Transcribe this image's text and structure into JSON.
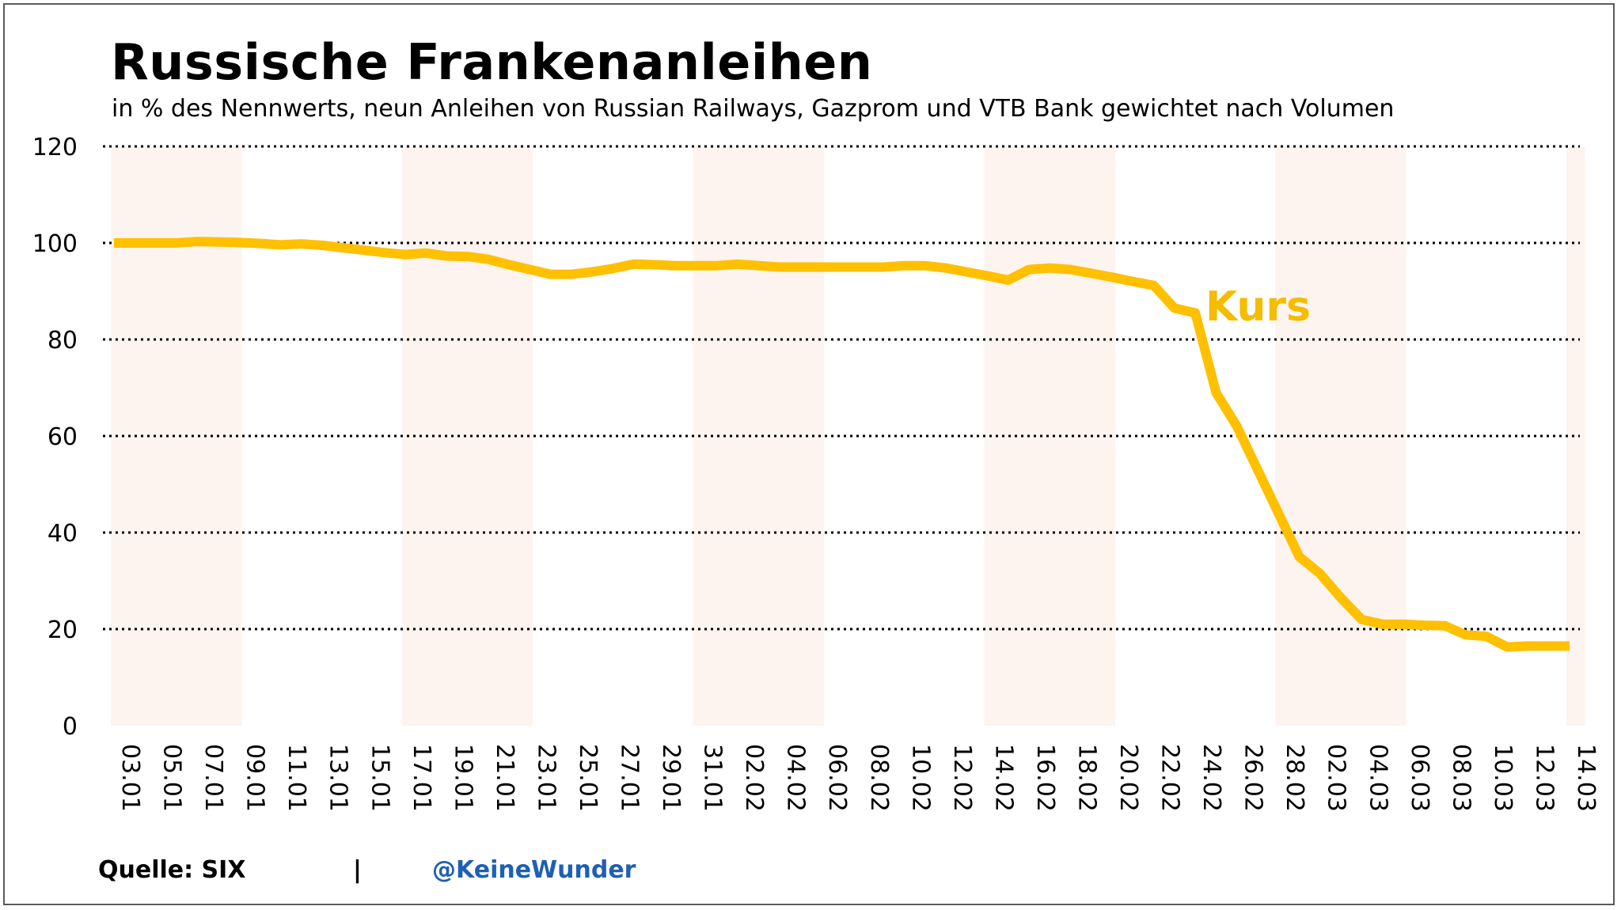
{
  "title": "Russische Frankenanleihen",
  "subtitle": "in % des Nennwerts, neun Anleihen von Russian Railways, Gazprom und VTB Bank gewichtet nach Volumen",
  "footer": {
    "source": "Quelle: SIX",
    "separator": "|",
    "handle": "@KeineWunder"
  },
  "colors": {
    "line": "#FFC000",
    "label": "#F5BC00",
    "shade": "#FDF4EF",
    "grid": "#000000",
    "handle": "#1F5FB4"
  },
  "chart_data": {
    "type": "line",
    "title": "Russische Frankenanleihen",
    "ylim": [
      0,
      120
    ],
    "yticks": [
      0,
      20,
      40,
      60,
      80,
      100,
      120
    ],
    "grid": "horizontal-dotted",
    "x_tick_labels": [
      "03.01",
      "05.01",
      "07.01",
      "09.01",
      "11.01",
      "13.01",
      "15.01",
      "17.01",
      "19.01",
      "21.01",
      "23.01",
      "25.01",
      "27.01",
      "29.01",
      "31.01",
      "02.02",
      "04.02",
      "06.02",
      "08.02",
      "10.02",
      "12.02",
      "14.02",
      "16.02",
      "18.02",
      "20.02",
      "22.02",
      "24.02",
      "26.02",
      "28.02",
      "02.03",
      "04.03",
      "06.03",
      "08.03",
      "10.03",
      "12.03",
      "14.03"
    ],
    "series": [
      {
        "name": "Kurs",
        "label": "Kurs",
        "x": [
          "03.01",
          "04.01",
          "05.01",
          "06.01",
          "07.01",
          "08.01",
          "09.01",
          "10.01",
          "11.01",
          "12.01",
          "13.01",
          "14.01",
          "15.01",
          "16.01",
          "17.01",
          "18.01",
          "19.01",
          "20.01",
          "21.01",
          "22.01",
          "23.01",
          "24.01",
          "25.01",
          "26.01",
          "27.01",
          "28.01",
          "29.01",
          "30.01",
          "31.01",
          "01.02",
          "02.02",
          "03.02",
          "04.02",
          "05.02",
          "06.02",
          "07.02",
          "08.02",
          "09.02",
          "10.02",
          "11.02",
          "12.02",
          "13.02",
          "14.02",
          "15.02",
          "16.02",
          "17.02",
          "18.02",
          "19.02",
          "20.02",
          "21.02",
          "22.02",
          "23.02",
          "24.02",
          "25.02",
          "26.02",
          "27.02",
          "28.02",
          "01.03",
          "02.03",
          "03.03",
          "04.03",
          "05.03",
          "06.03",
          "07.03",
          "08.03",
          "09.03",
          "10.03",
          "11.03",
          "12.03",
          "13.03",
          "14.03"
        ],
        "values": [
          100,
          100,
          100,
          100,
          100.3,
          100.2,
          100.1,
          99.9,
          99.6,
          99.8,
          99.5,
          99,
          98.5,
          98,
          97.6,
          97.9,
          97.3,
          97.2,
          96.6,
          95.5,
          94.5,
          93.5,
          93.5,
          94,
          94.7,
          95.6,
          95.5,
          95.3,
          95.3,
          95.3,
          95.6,
          95.3,
          95,
          95,
          95,
          95,
          95,
          95,
          95.3,
          95.3,
          94.8,
          94,
          93.2,
          92.3,
          94.5,
          94.8,
          94.5,
          93.7,
          92.9,
          92,
          91.2,
          86.5,
          85.5,
          69,
          62,
          53,
          44,
          35,
          31.5,
          26.5,
          22,
          21,
          21,
          20.8,
          20.7,
          18.8,
          18.5,
          16.3,
          16.5,
          16.5,
          16.5
        ]
      }
    ],
    "shaded_bands": [
      [
        "03.01",
        "09.01"
      ],
      [
        "17.01",
        "23.01"
      ],
      [
        "31.01",
        "06.02"
      ],
      [
        "14.02",
        "20.02"
      ],
      [
        "28.02",
        "06.03"
      ],
      [
        "14.03",
        "14.03"
      ]
    ]
  }
}
